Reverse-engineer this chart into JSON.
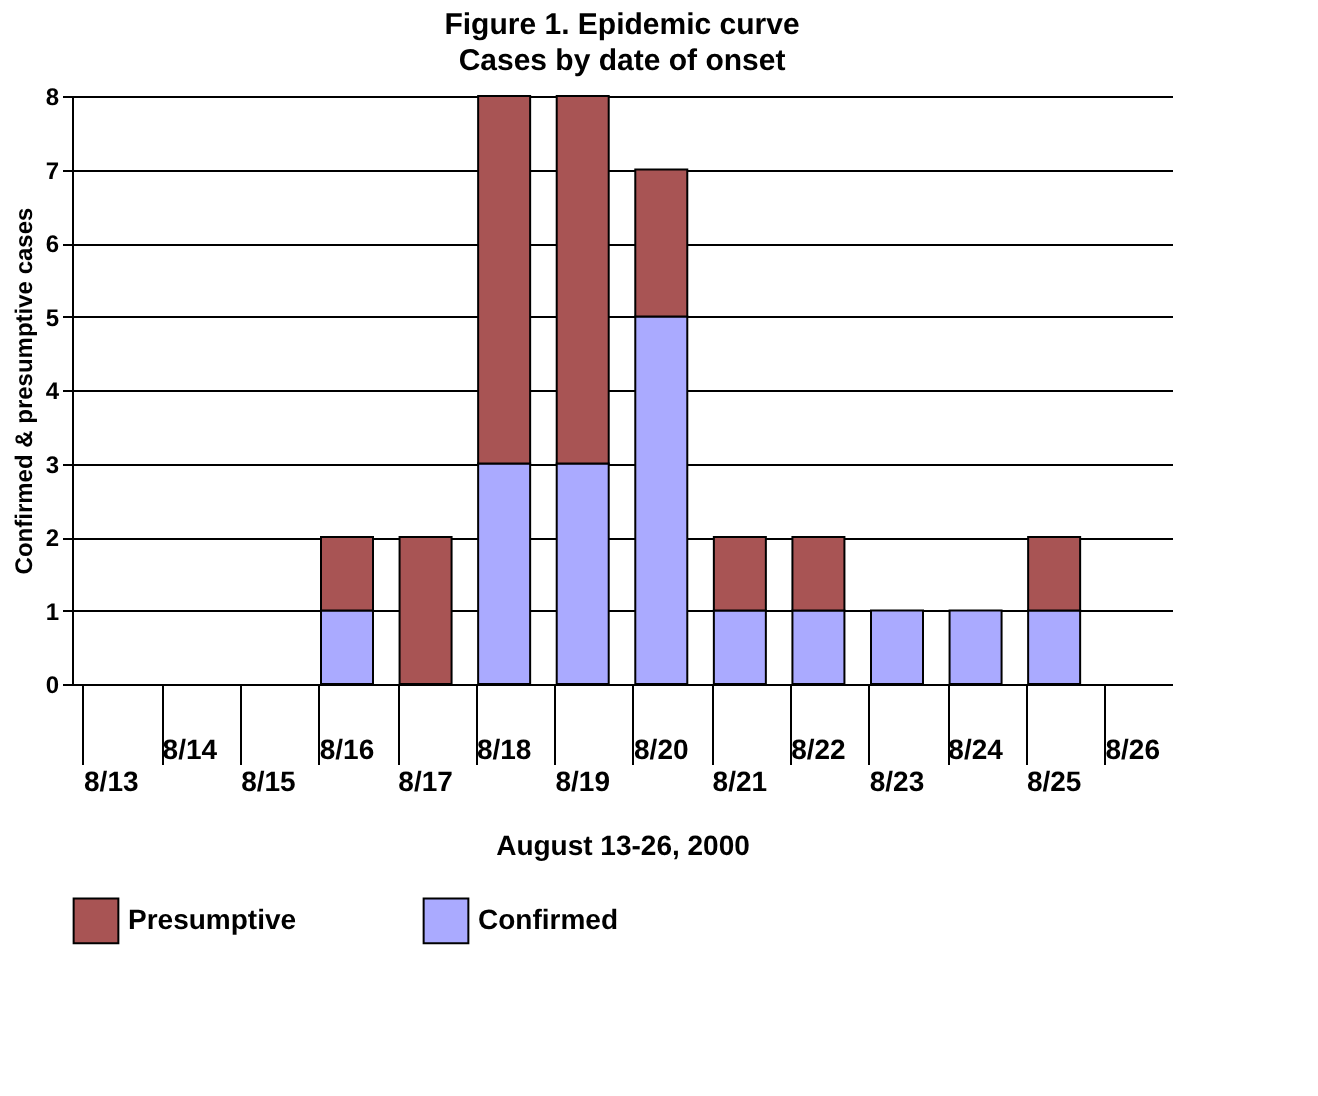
{
  "chart_data": {
    "type": "bar",
    "title": "Figure 1. Epidemic curve",
    "subtitle": "Cases by date of onset",
    "xlabel": "August 13-26, 2000",
    "ylabel": "Confirmed & presumptive cases",
    "categories": [
      "8/13",
      "8/14",
      "8/15",
      "8/16",
      "8/17",
      "8/18",
      "8/19",
      "8/20",
      "8/21",
      "8/22",
      "8/23",
      "8/24",
      "8/25",
      "8/26"
    ],
    "series": [
      {
        "name": "Confirmed",
        "color": "#aaaaff",
        "values": [
          0,
          0,
          0,
          1,
          0,
          3,
          3,
          5,
          1,
          1,
          1,
          1,
          1,
          0
        ]
      },
      {
        "name": "Presumptive",
        "color": "#a85454",
        "values": [
          0,
          0,
          0,
          1,
          2,
          5,
          5,
          2,
          1,
          1,
          0,
          0,
          1,
          0
        ]
      }
    ],
    "stacked": true,
    "ylim": [
      0,
      8
    ],
    "yticks": [
      0,
      1,
      2,
      3,
      4,
      5,
      6,
      7,
      8
    ],
    "grid": "y",
    "legend": "bottom"
  }
}
